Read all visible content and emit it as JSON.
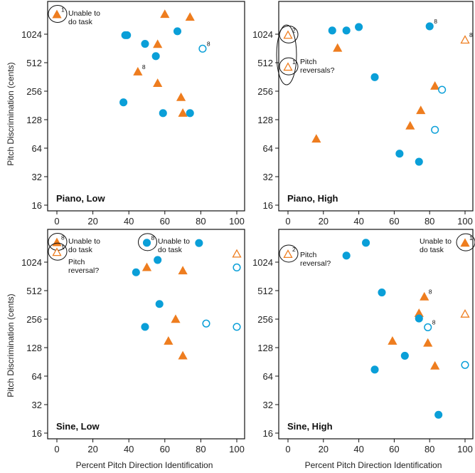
{
  "figure": {
    "y_axis_label": "Pitch Discrimination (cents)",
    "x_axis_label": "Percent Pitch Direction Identification"
  },
  "colors": {
    "triangle": "#ee7d1f",
    "circle": "#0a9fd8",
    "axis": "#111111"
  },
  "chart_data": [
    {
      "type": "scatter",
      "title": "Piano, Low",
      "xlim": [
        0,
        100
      ],
      "ylim": [
        16,
        2048
      ],
      "y_scale": "log2",
      "x_ticks": [
        "0",
        "20",
        "40",
        "60",
        "80",
        "100"
      ],
      "y_ticks": [
        "16",
        "32",
        "64",
        "128",
        "256",
        "512",
        "1024"
      ],
      "series": [
        {
          "marker": "filled-triangle",
          "points": [
            {
              "x": 0,
              "y": 1650,
              "label": "1",
              "circled": true
            },
            {
              "x": 60,
              "y": 1660
            },
            {
              "x": 74,
              "y": 1550
            },
            {
              "x": 56,
              "y": 800
            },
            {
              "x": 45,
              "y": 410,
              "label": "8"
            },
            {
              "x": 56,
              "y": 310
            },
            {
              "x": 69,
              "y": 220
            },
            {
              "x": 70,
              "y": 150
            }
          ]
        },
        {
          "marker": "filled-circle",
          "points": [
            {
              "x": 38,
              "y": 1000
            },
            {
              "x": 39,
              "y": 1000
            },
            {
              "x": 67,
              "y": 1100
            },
            {
              "x": 49,
              "y": 810
            },
            {
              "x": 55,
              "y": 600
            },
            {
              "x": 37,
              "y": 195
            },
            {
              "x": 59,
              "y": 150
            },
            {
              "x": 74,
              "y": 150
            }
          ]
        },
        {
          "marker": "open-circle",
          "points": [
            {
              "x": 81,
              "y": 720,
              "label": "8"
            }
          ]
        }
      ],
      "annotations": [
        {
          "text": [
            "Unable to",
            "do task"
          ]
        }
      ]
    },
    {
      "type": "scatter",
      "title": "Piano, High",
      "xlim": [
        0,
        100
      ],
      "ylim": [
        16,
        2048
      ],
      "y_scale": "log2",
      "x_ticks": [
        "0",
        "20",
        "40",
        "60",
        "80",
        "100"
      ],
      "y_ticks": [
        "16",
        "32",
        "64",
        "128",
        "256",
        "512",
        "1024"
      ],
      "series": [
        {
          "marker": "filled-triangle",
          "points": [
            {
              "x": 28,
              "y": 730
            },
            {
              "x": 83,
              "y": 290
            },
            {
              "x": 75,
              "y": 160
            },
            {
              "x": 69,
              "y": 110
            },
            {
              "x": 16,
              "y": 80
            }
          ]
        },
        {
          "marker": "open-triangle",
          "points": [
            {
              "x": 0,
              "y": 1000,
              "label": "2",
              "circled": true
            },
            {
              "x": 0,
              "y": 460,
              "label": "1",
              "circled": true
            },
            {
              "x": 100,
              "y": 890,
              "label": "8"
            }
          ]
        },
        {
          "marker": "filled-circle",
          "points": [
            {
              "x": 25,
              "y": 1120
            },
            {
              "x": 33,
              "y": 1120
            },
            {
              "x": 40,
              "y": 1220
            },
            {
              "x": 80,
              "y": 1240,
              "label": "8"
            },
            {
              "x": 49,
              "y": 360
            },
            {
              "x": 63,
              "y": 56
            },
            {
              "x": 74,
              "y": 46
            }
          ]
        },
        {
          "marker": "open-circle",
          "points": [
            {
              "x": 87,
              "y": 265
            },
            {
              "x": 83,
              "y": 100
            }
          ]
        }
      ],
      "annotations": [
        {
          "text": [
            "Pitch",
            "reversals?"
          ]
        }
      ]
    },
    {
      "type": "scatter",
      "title": "Sine, Low",
      "xlim": [
        0,
        100
      ],
      "ylim": [
        16,
        2048
      ],
      "y_scale": "log2",
      "x_ticks": [
        "0",
        "20",
        "40",
        "60",
        "80",
        "100"
      ],
      "y_ticks": [
        "16",
        "32",
        "64",
        "128",
        "256",
        "512",
        "1024"
      ],
      "series": [
        {
          "marker": "filled-triangle",
          "points": [
            {
              "x": 0,
              "y": 1650,
              "label": "8",
              "circled": true
            },
            {
              "x": 50,
              "y": 900
            },
            {
              "x": 70,
              "y": 830
            },
            {
              "x": 66,
              "y": 255
            },
            {
              "x": 62,
              "y": 150
            },
            {
              "x": 70,
              "y": 105
            }
          ]
        },
        {
          "marker": "open-triangle",
          "points": [
            {
              "x": 0,
              "y": 1300,
              "label": "1",
              "circled": true
            },
            {
              "x": 100,
              "y": 1250
            }
          ]
        },
        {
          "marker": "filled-circle",
          "points": [
            {
              "x": 50,
              "y": 1640,
              "label": "8",
              "circled": true
            },
            {
              "x": 79,
              "y": 1630
            },
            {
              "x": 56,
              "y": 1080
            },
            {
              "x": 44,
              "y": 800
            },
            {
              "x": 57,
              "y": 370
            },
            {
              "x": 49,
              "y": 212
            }
          ]
        },
        {
          "marker": "open-circle",
          "points": [
            {
              "x": 100,
              "y": 900
            },
            {
              "x": 83,
              "y": 230
            },
            {
              "x": 100,
              "y": 212
            }
          ]
        }
      ],
      "annotations": [
        {
          "text": [
            "Unable to",
            "do task"
          ]
        },
        {
          "text": [
            "Pitch",
            "reversal?"
          ]
        },
        {
          "text": [
            "Unable to",
            "do task"
          ]
        }
      ]
    },
    {
      "type": "scatter",
      "title": "Sine, High",
      "xlim": [
        0,
        100
      ],
      "ylim": [
        16,
        2048
      ],
      "y_scale": "log2",
      "x_ticks": [
        "0",
        "20",
        "40",
        "60",
        "80",
        "100"
      ],
      "y_ticks": [
        "16",
        "32",
        "64",
        "128",
        "256",
        "512",
        "1024"
      ],
      "series": [
        {
          "marker": "filled-triangle",
          "points": [
            {
              "x": 100,
              "y": 1630,
              "label": "1",
              "circled": true
            },
            {
              "x": 77,
              "y": 440,
              "label": "8"
            },
            {
              "x": 74,
              "y": 295
            },
            {
              "x": 59,
              "y": 150
            },
            {
              "x": 79,
              "y": 143
            },
            {
              "x": 83,
              "y": 82
            }
          ]
        },
        {
          "marker": "open-triangle",
          "points": [
            {
              "x": 0,
              "y": 1240,
              "label": "2",
              "circled": true
            },
            {
              "x": 100,
              "y": 290
            }
          ]
        },
        {
          "marker": "filled-circle",
          "points": [
            {
              "x": 44,
              "y": 1640
            },
            {
              "x": 33,
              "y": 1200
            },
            {
              "x": 53,
              "y": 490
            },
            {
              "x": 74,
              "y": 260
            },
            {
              "x": 66,
              "y": 105
            },
            {
              "x": 49,
              "y": 75
            },
            {
              "x": 85,
              "y": 25
            }
          ]
        },
        {
          "marker": "open-circle",
          "points": [
            {
              "x": 79,
              "y": 210,
              "label": "8"
            },
            {
              "x": 100,
              "y": 84
            }
          ]
        }
      ],
      "annotations": [
        {
          "text": [
            "Pitch",
            "reversal?"
          ]
        },
        {
          "text": [
            "Unable to",
            "do task"
          ]
        }
      ]
    }
  ]
}
